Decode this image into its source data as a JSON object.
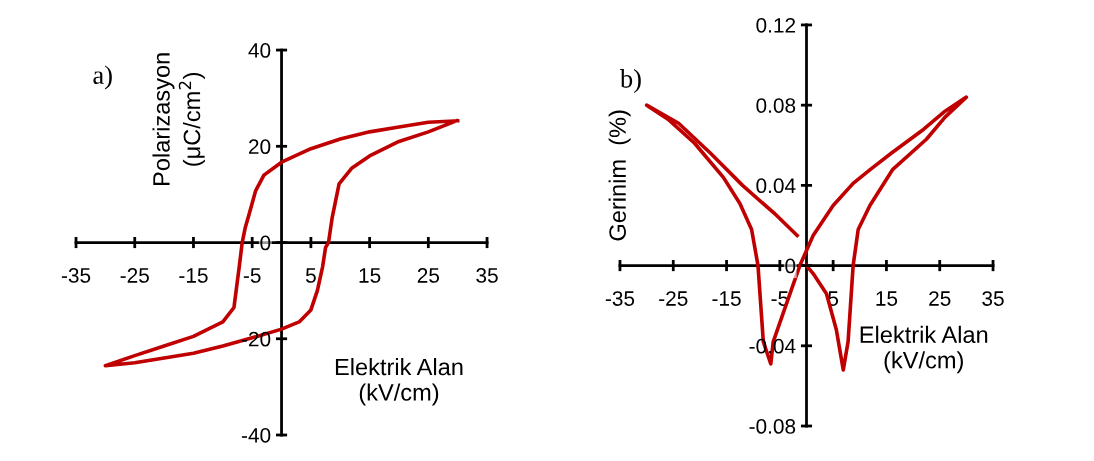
{
  "chart_data": [
    {
      "type": "line",
      "title": "a)",
      "xlabel": "Elektrik Alan\n(kV/cm)",
      "ylabel": "Polarizasyon\n(μC/cm$^{2}$)",
      "xlim": [
        -35,
        35
      ],
      "xticks": [
        -35,
        -25,
        -15,
        -5,
        5,
        15,
        25,
        35
      ],
      "ylim": [
        -40,
        40
      ],
      "yticks": [
        -40,
        -20,
        0,
        20,
        40
      ],
      "grid": false,
      "legend": false,
      "marker": "none",
      "line_style": "solid",
      "series": [
        {
          "color": "#c00000",
          "x": [
            30,
            25,
            20,
            15,
            10,
            5,
            0,
            -3,
            -4.4,
            -5.5,
            -6.2,
            -6.7,
            -7.2,
            -8.1,
            -10,
            -15,
            -20,
            -25,
            -30,
            -25,
            -20,
            -15,
            -10,
            -5,
            0,
            3,
            5,
            6.1,
            7,
            7.5,
            8,
            8.6,
            9.8,
            12,
            15,
            20,
            25,
            29.8
          ],
          "values": [
            25.3,
            25,
            24,
            23,
            21.5,
            19.5,
            16.7,
            14,
            10.8,
            6,
            3,
            0,
            -5,
            -13.5,
            -16.5,
            -19.5,
            -21.5,
            -23.5,
            -25.6,
            -25,
            -24,
            -23,
            -21.5,
            -19.8,
            -18,
            -16.5,
            -14,
            -10,
            -5,
            -1,
            0,
            5,
            12.2,
            15.5,
            18,
            21,
            23,
            25.3
          ]
        }
      ]
    },
    {
      "type": "line",
      "title": "b)",
      "xlabel": "Elektrik Alan\n(kV/cm)",
      "ylabel": "Gerinim  (%)",
      "xlim": [
        -35,
        35
      ],
      "xticks": [
        -35,
        -25,
        -15,
        -5,
        5,
        15,
        25,
        35
      ],
      "ylim": [
        -0.08,
        0.12
      ],
      "yticks": [
        -0.08,
        -0.04,
        0,
        0.04,
        0.08,
        0.12
      ],
      "grid": false,
      "legend": false,
      "marker": "none",
      "line_style": "solid",
      "series": [
        {
          "color": "#c00000",
          "x": [
            0,
            1.25,
            3.75,
            5.6,
            6.9,
            7.8,
            8.75,
            9.7,
            11.9,
            16.2,
            22.5,
            26,
            30,
            26,
            22,
            15.9,
            12,
            8.75,
            5,
            1.25,
            -1.25,
            -3.75,
            -6.25,
            -6.7,
            -8.1,
            -9.1,
            -10.3,
            -12.5,
            -15.6,
            -21,
            -26,
            -30,
            -24,
            -18,
            -12,
            -5.6,
            -1.75
          ],
          "values": [
            0,
            -0.004,
            -0.014,
            -0.032,
            -0.052,
            -0.038,
            0,
            0.018,
            0.03,
            0.048,
            0.063,
            0.074,
            0.084,
            0.077,
            0.068,
            0.056,
            0.048,
            0.041,
            0.03,
            0.015,
            0,
            -0.019,
            -0.038,
            -0.049,
            -0.038,
            0,
            0.018,
            0.031,
            0.044,
            0.061,
            0.073,
            0.08,
            0.071,
            0.056,
            0.04,
            0.025,
            0.015
          ]
        }
      ]
    }
  ]
}
